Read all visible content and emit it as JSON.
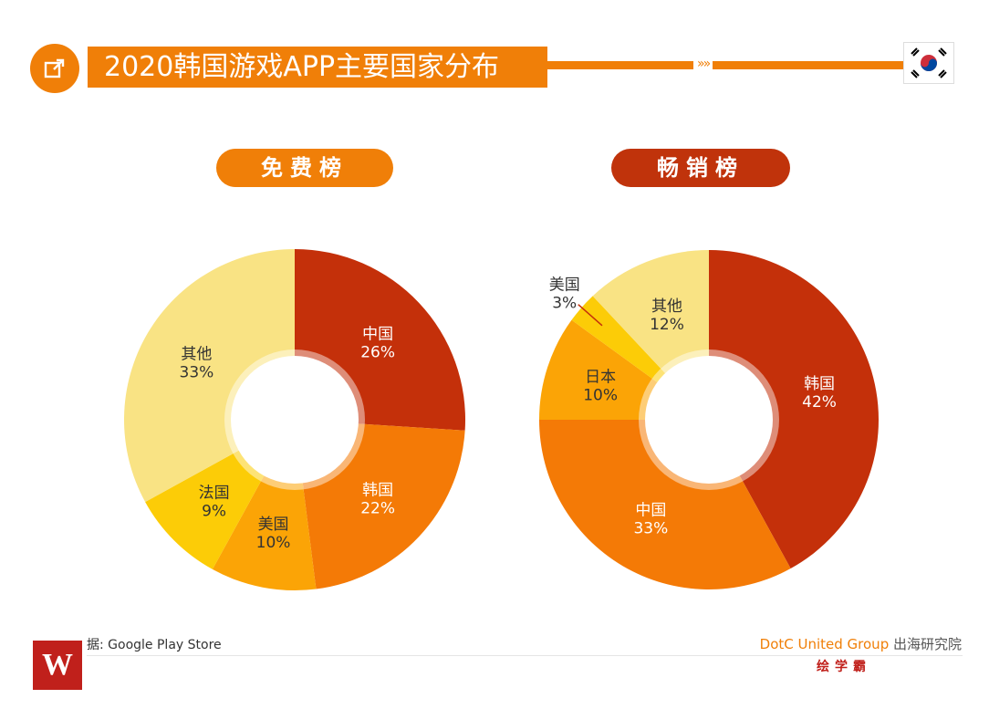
{
  "header": {
    "title": "2020韩国游戏APP主要国家分布",
    "arrows": "»»"
  },
  "footer": {
    "source": "据: Google Play Store",
    "brand_en": "DotC United Group",
    "brand_cn": " 出海研究院",
    "brand_sub": "绘学霸"
  },
  "chart_data": [
    {
      "type": "pie",
      "title": "免费榜",
      "slices": [
        {
          "label": "中国",
          "value": 26,
          "display": "26%",
          "color": "#c4300a"
        },
        {
          "label": "韩国",
          "value": 22,
          "display": "22%",
          "color": "#f47a06"
        },
        {
          "label": "美国",
          "value": 10,
          "display": "10%",
          "color": "#fba406"
        },
        {
          "label": "法国",
          "value": 9,
          "display": "9%",
          "color": "#fccc07"
        },
        {
          "label": "其他",
          "value": 33,
          "display": "33%",
          "color": "#f9e384"
        }
      ]
    },
    {
      "type": "pie",
      "title": "畅销榜",
      "slices": [
        {
          "label": "韩国",
          "value": 42,
          "display": "42%",
          "color": "#c4300a"
        },
        {
          "label": "中国",
          "value": 33,
          "display": "33%",
          "color": "#f47a06"
        },
        {
          "label": "日本",
          "value": 10,
          "display": "10%",
          "color": "#fba406"
        },
        {
          "label": "美国",
          "value": 3,
          "display": "3%",
          "color": "#fccc07"
        },
        {
          "label": "其他",
          "value": 12,
          "display": "12%",
          "color": "#f9e384"
        }
      ]
    }
  ]
}
